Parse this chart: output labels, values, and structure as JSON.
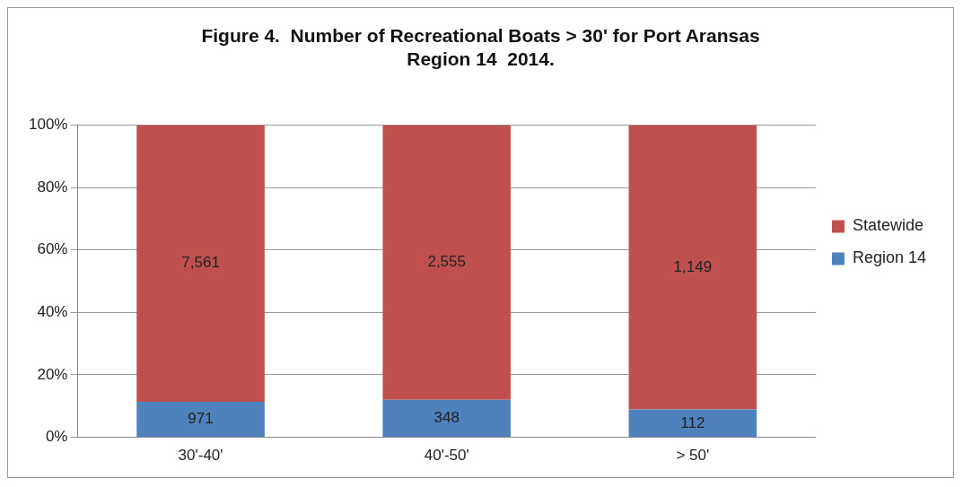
{
  "chart_data": {
    "type": "bar",
    "title": "Figure 4.  Number of Recreational Boats > 30' for Port Aransas\nRegion 14  2014.",
    "categories": [
      "30'-40'",
      "40'-50'",
      "> 50'"
    ],
    "stacked": true,
    "series": [
      {
        "name": "Region 14",
        "color": "#4f81bd",
        "values": [
          11.4,
          12.0,
          8.9
        ]
      },
      {
        "name": "Statewide",
        "color": "#c0504d",
        "values": [
          88.6,
          88.0,
          91.1
        ]
      }
    ],
    "annotations": [
      "971",
      "348",
      "112",
      "7,561",
      "2,555",
      "1,149"
    ],
    "ylim": [
      0,
      100
    ],
    "yticks": [
      {
        "value": 0,
        "label": "0%"
      },
      {
        "value": 20,
        "label": "20%"
      },
      {
        "value": 40,
        "label": "40%"
      },
      {
        "value": 60,
        "label": "60%"
      },
      {
        "value": 80,
        "label": "80%"
      },
      {
        "value": 100,
        "label": "100%"
      }
    ],
    "grid": "y",
    "legend": "right"
  }
}
